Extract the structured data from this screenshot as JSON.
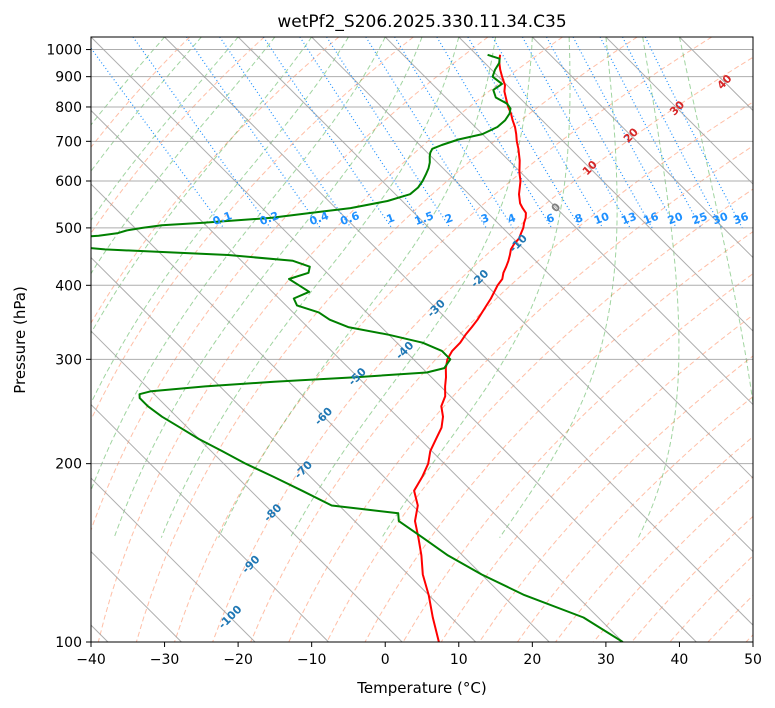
{
  "chart_data": {
    "type": "line",
    "title": "wetPf2_S206.2025.330.11.34.C35",
    "xlabel": "Temperature (°C)",
    "ylabel": "Pressure (hPa)",
    "xlim": [
      -40,
      50
    ],
    "ylim": [
      1050,
      100
    ],
    "y_scale": "log",
    "x_ticks": [
      -40,
      -30,
      -20,
      -10,
      0,
      10,
      20,
      30,
      40,
      50
    ],
    "x_tick_labels": [
      "−40",
      "−30",
      "−20",
      "−10",
      "0",
      "10",
      "20",
      "30",
      "40",
      "50"
    ],
    "y_ticks": [
      100,
      200,
      300,
      400,
      500,
      600,
      700,
      800,
      900,
      1000
    ],
    "y_tick_labels": [
      "100",
      "200",
      "300",
      "400",
      "500",
      "600",
      "700",
      "800",
      "900",
      "1000"
    ],
    "grid": true,
    "skew_factor": 35,
    "colors": {
      "temperature": "#ff0000",
      "dewpoint": "#008000",
      "isotherm": "#a0a0a0",
      "dry_adiabat": "#ff7f50",
      "moist_adiabat": "#2ca02c",
      "mixing_ratio": "#1e90ff",
      "iso_label_blue": "#1f77b4",
      "iso_label_red": "#d62728"
    },
    "isotherm_labels": [
      {
        "label": "-100",
        "t": -100,
        "p": 110
      },
      {
        "label": "-90",
        "t": -90,
        "p": 135
      },
      {
        "label": "-80",
        "t": -80,
        "p": 165
      },
      {
        "label": "-70",
        "t": -70,
        "p": 195
      },
      {
        "label": "-60",
        "t": -60,
        "p": 240
      },
      {
        "label": "-50",
        "t": -50,
        "p": 280
      },
      {
        "label": "-40",
        "t": -40,
        "p": 310
      },
      {
        "label": "-30",
        "t": -30,
        "p": 365
      },
      {
        "label": "-20",
        "t": -20,
        "p": 410
      },
      {
        "label": "-10",
        "t": -10,
        "p": 470
      },
      {
        "label": "0",
        "t": 0,
        "p": 540
      },
      {
        "label": "10",
        "t": 10,
        "p": 630
      },
      {
        "label": "20",
        "t": 20,
        "p": 715
      },
      {
        "label": "30",
        "t": 30,
        "p": 795
      },
      {
        "label": "40",
        "t": 40,
        "p": 880
      }
    ],
    "mixing_ratio_labels": [
      "0.1",
      "0.2",
      "0.4",
      "0.6",
      "1",
      "1.5",
      "2",
      "3",
      "4",
      "6",
      "8",
      "10",
      "13",
      "16",
      "20",
      "25",
      "30",
      "36"
    ],
    "series": [
      {
        "name": "Temperature",
        "p": [
          980,
          965,
          950,
          925,
          900,
          870,
          850,
          825,
          800,
          780,
          760,
          740,
          720,
          700,
          680,
          650,
          620,
          600,
          570,
          550,
          540,
          530,
          520,
          510,
          500,
          490,
          480,
          470,
          460,
          450,
          440,
          430,
          420,
          410,
          400,
          380,
          360,
          350,
          340,
          330,
          320,
          310,
          300,
          290,
          280,
          270,
          260,
          250,
          240,
          230,
          220,
          210,
          200,
          190,
          180,
          170,
          160,
          150,
          140,
          130,
          120,
          110,
          100
        ],
        "t": [
          13.2,
          12.6,
          12.0,
          11.2,
          10.5,
          9.7,
          8.8,
          8.0,
          7.2,
          6.7,
          6.0,
          5.4,
          4.6,
          3.7,
          2.9,
          1.5,
          -0.2,
          -1.2,
          -3.2,
          -4.3,
          -4.6,
          -4.8,
          -5.5,
          -6.4,
          -7.2,
          -8.2,
          -9.2,
          -10.6,
          -11.8,
          -12.7,
          -13.7,
          -14.8,
          -16.0,
          -17.0,
          -18.5,
          -21.2,
          -24.3,
          -25.9,
          -27.7,
          -29.6,
          -31.4,
          -33.6,
          -35.4,
          -36.8,
          -38.0,
          -39.4,
          -40.7,
          -42.6,
          -43.8,
          -45.5,
          -47.8,
          -50.2,
          -52.2,
          -54.8,
          -57.8,
          -59.3,
          -61.8,
          -63.6,
          -65.6,
          -68.0,
          -70.0,
          -72.5,
          -75.0
        ]
      },
      {
        "name": "Dewpoint",
        "p": [
          980,
          965,
          950,
          925,
          900,
          875,
          855,
          830,
          810,
          795,
          780,
          760,
          740,
          720,
          705,
          690,
          680,
          670,
          660,
          645,
          630,
          615,
          600,
          585,
          570,
          555,
          540,
          530,
          520,
          515,
          510,
          505,
          500,
          495,
          490,
          485,
          480,
          470,
          460,
          450,
          440,
          430,
          420,
          410,
          400,
          390,
          380,
          370,
          360,
          350,
          340,
          330,
          320,
          310,
          300,
          290,
          285,
          280,
          275,
          270,
          265,
          262,
          258,
          250,
          240,
          230,
          220,
          210,
          200,
          190,
          180,
          170,
          165,
          160,
          150,
          140,
          130,
          120,
          110,
          100
        ],
        "t": [
          11.5,
          12.6,
          12.0,
          10.5,
          9.2,
          9.5,
          7.5,
          6.8,
          7.5,
          7.3,
          6.5,
          5.0,
          3.0,
          0.0,
          -4.0,
          -7.0,
          -8.8,
          -9.6,
          -10.2,
          -11.0,
          -12.0,
          -13.2,
          -14.5,
          -16.0,
          -18.0,
          -22.0,
          -28.0,
          -34.0,
          -40.0,
          -45.0,
          -50.0,
          -56.0,
          -59.0,
          -61.5,
          -63.0,
          -66.0,
          -72.0,
          -74.5,
          -67.0,
          -51.0,
          -43.0,
          -41.5,
          -42.5,
          -46.0,
          -45.5,
          -45.0,
          -48.0,
          -48.5,
          -46.5,
          -46.0,
          -44.5,
          -40.0,
          -36.5,
          -35.0,
          -35.0,
          -37.0,
          -40.0,
          -50.0,
          -62.0,
          -72.0,
          -80.0,
          -82.0,
          -82.5,
          -82.5,
          -82.0,
          -81.0,
          -80.0,
          -78.5,
          -77.0,
          -75.0,
          -73.0,
          -71.0,
          -63.0,
          -64.0,
          -63.0,
          -62.0,
          -60.0,
          -57.0,
          -52.0,
          -50.0
        ]
      }
    ]
  }
}
